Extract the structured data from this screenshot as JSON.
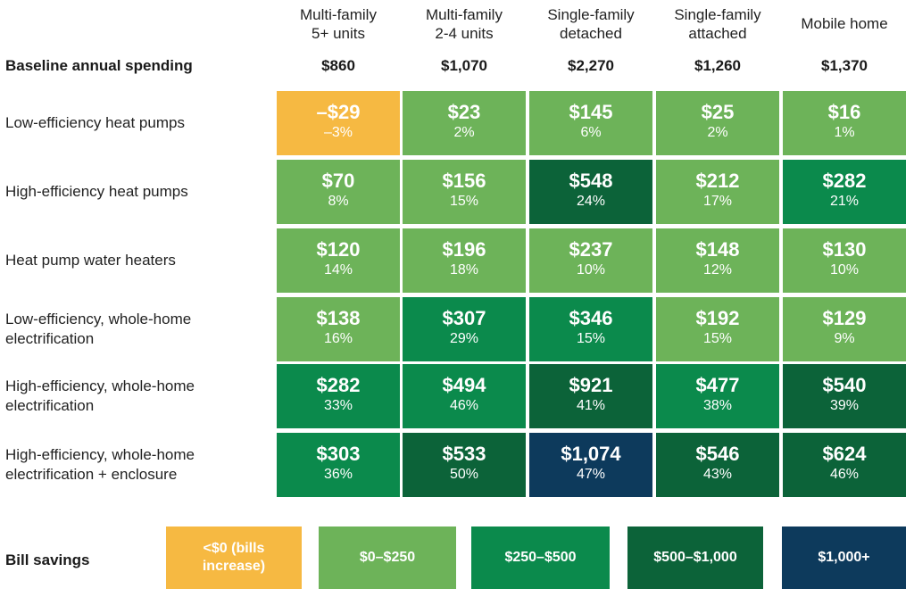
{
  "colors": {
    "negative": "#f6b942",
    "tier1": "#6db359",
    "tier2": "#0b8a4c",
    "tier3": "#0c6339",
    "tier4": "#0d3a5c"
  },
  "baseline_label": "Baseline annual spending",
  "chart_data": {
    "type": "heatmap",
    "columns": [
      "Multi-family\n5+ units",
      "Multi-family\n2-4 units",
      "Single-family\ndetached",
      "Single-family\nattached",
      "Mobile home"
    ],
    "baseline": [
      "$860",
      "$1,070",
      "$2,270",
      "$1,260",
      "$1,370"
    ],
    "rows": [
      {
        "label": "Low-efficiency heat pumps",
        "values": [
          -29,
          23,
          145,
          25,
          16
        ],
        "amounts": [
          "–$29",
          "$23",
          "$145",
          "$25",
          "$16"
        ],
        "percents": [
          "–3%",
          "2%",
          "6%",
          "2%",
          "1%"
        ]
      },
      {
        "label": "High-efficiency heat pumps",
        "values": [
          70,
          156,
          548,
          212,
          282
        ],
        "amounts": [
          "$70",
          "$156",
          "$548",
          "$212",
          "$282"
        ],
        "percents": [
          "8%",
          "15%",
          "24%",
          "17%",
          "21%"
        ]
      },
      {
        "label": "Heat pump water heaters",
        "values": [
          120,
          196,
          237,
          148,
          130
        ],
        "amounts": [
          "$120",
          "$196",
          "$237",
          "$148",
          "$130"
        ],
        "percents": [
          "14%",
          "18%",
          "10%",
          "12%",
          "10%"
        ]
      },
      {
        "label": "Low-efficiency, whole-home\nelectrification",
        "values": [
          138,
          307,
          346,
          192,
          129
        ],
        "amounts": [
          "$138",
          "$307",
          "$346",
          "$192",
          "$129"
        ],
        "percents": [
          "16%",
          "29%",
          "15%",
          "15%",
          "9%"
        ]
      },
      {
        "label": "High-efficiency, whole-home\nelectrification",
        "values": [
          282,
          494,
          921,
          477,
          540
        ],
        "amounts": [
          "$282",
          "$494",
          "$921",
          "$477",
          "$540"
        ],
        "percents": [
          "33%",
          "46%",
          "41%",
          "38%",
          "39%"
        ]
      },
      {
        "label": "High-efficiency, whole-home\nelectrification + enclosure",
        "values": [
          303,
          533,
          1074,
          546,
          624
        ],
        "amounts": [
          "$303",
          "$533",
          "$1,074",
          "$546",
          "$624"
        ],
        "percents": [
          "36%",
          "50%",
          "47%",
          "43%",
          "46%"
        ]
      }
    ],
    "legend": {
      "title": "Bill savings",
      "items": [
        {
          "label": "<$0 (bills\nincrease)",
          "color": "#f6b942"
        },
        {
          "label": "$0–$250",
          "color": "#6db359"
        },
        {
          "label": "$250–$500",
          "color": "#0b8a4c"
        },
        {
          "label": "$500–$1,000",
          "color": "#0c6339"
        },
        {
          "label": "$1,000+",
          "color": "#0d3a5c"
        }
      ]
    }
  }
}
